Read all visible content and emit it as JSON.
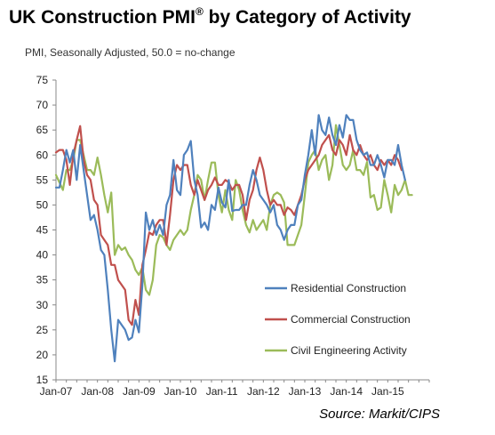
{
  "title": "UK Construction PMI",
  "title_mark": "®",
  "title_rest": " by Category of Activity",
  "subtitle": "PMI, Seasonally Adjusted, 50.0 = no-change",
  "source": "Source: Markit/CIPS",
  "chart_data": {
    "type": "line",
    "title": "UK Construction PMI® by Category of Activity",
    "subtitle": "PMI, Seasonally Adjusted, 50.0 = no-change",
    "x_start": "2007-01",
    "x_frequency": "monthly",
    "x_tick_labels": [
      "Jan-07",
      "Jan-08",
      "Jan-09",
      "Jan-10",
      "Jan-11",
      "Jan-12",
      "Jan-13",
      "Jan-14",
      "Jan-15"
    ],
    "ylim": [
      15,
      75
    ],
    "y_ticks": [
      15,
      20,
      25,
      30,
      35,
      40,
      45,
      50,
      55,
      60,
      65,
      70,
      75
    ],
    "grid": false,
    "legend_position": "bottom-right",
    "series": [
      {
        "name": "Residential Construction",
        "color": "#4f81bd",
        "values": [
          53.5,
          53.5,
          57,
          61,
          58.5,
          61,
          55,
          62,
          57,
          52,
          47,
          48,
          45,
          41,
          40,
          33,
          25,
          18.7,
          27,
          26,
          25,
          23,
          23.5,
          27,
          24.5,
          34,
          48.5,
          45,
          47,
          44,
          46,
          44,
          50,
          52,
          59,
          53,
          52,
          60,
          61,
          62.8,
          55,
          52,
          45.5,
          46.5,
          45,
          50,
          49,
          53.5,
          50.5,
          49.5,
          55,
          48.8,
          49,
          49,
          50,
          50,
          54,
          57,
          55,
          52,
          51,
          50,
          48.5,
          50,
          46,
          45,
          43,
          45,
          46,
          46,
          50,
          51,
          56,
          60,
          65,
          60,
          68,
          65,
          64,
          67.5,
          64,
          62,
          66,
          63.5,
          68,
          67,
          67,
          63,
          61,
          60,
          60.5,
          58,
          58,
          60,
          58,
          55.5,
          59,
          59,
          58,
          62,
          58,
          55
        ]
      },
      {
        "name": "Commercial Construction",
        "color": "#c0504d",
        "values": [
          60.5,
          61,
          61,
          59,
          54,
          60,
          63,
          65.8,
          59,
          56,
          55,
          51,
          50,
          44,
          43,
          42,
          38,
          38,
          35,
          34,
          33,
          27,
          26,
          31,
          28,
          38,
          41,
          44.5,
          44,
          46,
          47,
          47,
          42,
          48,
          55,
          58,
          57,
          58,
          58,
          54,
          52,
          55,
          53,
          51,
          53,
          54,
          55.5,
          54,
          54,
          55,
          54.5,
          53,
          54,
          54,
          52,
          47,
          51,
          53,
          57,
          59.5,
          57,
          53,
          50,
          51,
          50,
          50,
          48,
          49.5,
          49,
          48,
          50,
          52,
          55,
          57,
          58,
          59,
          60,
          62,
          63,
          64,
          61,
          60,
          63,
          62,
          60,
          64,
          61,
          60,
          62,
          60,
          59,
          60,
          58,
          57,
          59,
          58,
          59,
          58,
          60,
          59,
          57
        ]
      },
      {
        "name": "Civil Engineering Activity",
        "color": "#9bbb59",
        "values": [
          56,
          54.5,
          53,
          57,
          57,
          59,
          63,
          63,
          60,
          57,
          57,
          56,
          59.5,
          56,
          52,
          48.5,
          52.5,
          40,
          42,
          41,
          41.5,
          40,
          39,
          37,
          36,
          37.5,
          33,
          32,
          35,
          42,
          44,
          43.5,
          42,
          41,
          43,
          44,
          45,
          44,
          45,
          49,
          52,
          56,
          55,
          51,
          55,
          58.5,
          58.5,
          52,
          48.5,
          53,
          49,
          47,
          55,
          53,
          49,
          46,
          44.5,
          47,
          45,
          46,
          47,
          45,
          50,
          52,
          52.5,
          52,
          50.5,
          42,
          42,
          42,
          44,
          46,
          52,
          58.5,
          60,
          61,
          57,
          59,
          60,
          55,
          58,
          66,
          62,
          58,
          57,
          58,
          61,
          57,
          57,
          56,
          58.6,
          51.5,
          52,
          49,
          49.5,
          55,
          52,
          48.5,
          54,
          52,
          53,
          55,
          52,
          52
        ]
      }
    ]
  }
}
